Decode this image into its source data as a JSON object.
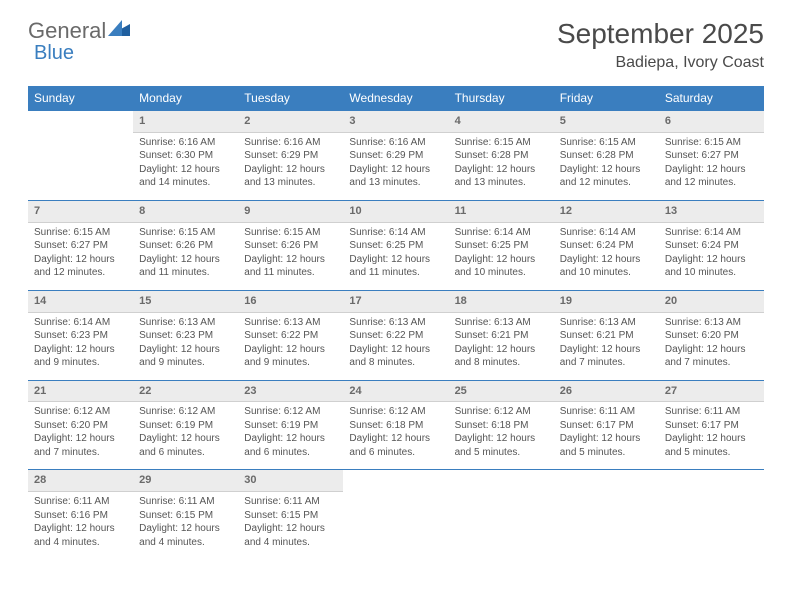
{
  "brand": {
    "word1": "General",
    "word2": "Blue"
  },
  "title": "September 2025",
  "location": "Badiepa, Ivory Coast",
  "colors": {
    "header_bg": "#3a7ebf",
    "daynum_bg": "#ececec",
    "text": "#4a4a4a"
  },
  "days_of_week": [
    "Sunday",
    "Monday",
    "Tuesday",
    "Wednesday",
    "Thursday",
    "Friday",
    "Saturday"
  ],
  "weeks": [
    [
      null,
      {
        "n": "1",
        "sr": "Sunrise: 6:16 AM",
        "ss": "Sunset: 6:30 PM",
        "dl": "Daylight: 12 hours and 14 minutes."
      },
      {
        "n": "2",
        "sr": "Sunrise: 6:16 AM",
        "ss": "Sunset: 6:29 PM",
        "dl": "Daylight: 12 hours and 13 minutes."
      },
      {
        "n": "3",
        "sr": "Sunrise: 6:16 AM",
        "ss": "Sunset: 6:29 PM",
        "dl": "Daylight: 12 hours and 13 minutes."
      },
      {
        "n": "4",
        "sr": "Sunrise: 6:15 AM",
        "ss": "Sunset: 6:28 PM",
        "dl": "Daylight: 12 hours and 13 minutes."
      },
      {
        "n": "5",
        "sr": "Sunrise: 6:15 AM",
        "ss": "Sunset: 6:28 PM",
        "dl": "Daylight: 12 hours and 12 minutes."
      },
      {
        "n": "6",
        "sr": "Sunrise: 6:15 AM",
        "ss": "Sunset: 6:27 PM",
        "dl": "Daylight: 12 hours and 12 minutes."
      }
    ],
    [
      {
        "n": "7",
        "sr": "Sunrise: 6:15 AM",
        "ss": "Sunset: 6:27 PM",
        "dl": "Daylight: 12 hours and 12 minutes."
      },
      {
        "n": "8",
        "sr": "Sunrise: 6:15 AM",
        "ss": "Sunset: 6:26 PM",
        "dl": "Daylight: 12 hours and 11 minutes."
      },
      {
        "n": "9",
        "sr": "Sunrise: 6:15 AM",
        "ss": "Sunset: 6:26 PM",
        "dl": "Daylight: 12 hours and 11 minutes."
      },
      {
        "n": "10",
        "sr": "Sunrise: 6:14 AM",
        "ss": "Sunset: 6:25 PM",
        "dl": "Daylight: 12 hours and 11 minutes."
      },
      {
        "n": "11",
        "sr": "Sunrise: 6:14 AM",
        "ss": "Sunset: 6:25 PM",
        "dl": "Daylight: 12 hours and 10 minutes."
      },
      {
        "n": "12",
        "sr": "Sunrise: 6:14 AM",
        "ss": "Sunset: 6:24 PM",
        "dl": "Daylight: 12 hours and 10 minutes."
      },
      {
        "n": "13",
        "sr": "Sunrise: 6:14 AM",
        "ss": "Sunset: 6:24 PM",
        "dl": "Daylight: 12 hours and 10 minutes."
      }
    ],
    [
      {
        "n": "14",
        "sr": "Sunrise: 6:14 AM",
        "ss": "Sunset: 6:23 PM",
        "dl": "Daylight: 12 hours and 9 minutes."
      },
      {
        "n": "15",
        "sr": "Sunrise: 6:13 AM",
        "ss": "Sunset: 6:23 PM",
        "dl": "Daylight: 12 hours and 9 minutes."
      },
      {
        "n": "16",
        "sr": "Sunrise: 6:13 AM",
        "ss": "Sunset: 6:22 PM",
        "dl": "Daylight: 12 hours and 9 minutes."
      },
      {
        "n": "17",
        "sr": "Sunrise: 6:13 AM",
        "ss": "Sunset: 6:22 PM",
        "dl": "Daylight: 12 hours and 8 minutes."
      },
      {
        "n": "18",
        "sr": "Sunrise: 6:13 AM",
        "ss": "Sunset: 6:21 PM",
        "dl": "Daylight: 12 hours and 8 minutes."
      },
      {
        "n": "19",
        "sr": "Sunrise: 6:13 AM",
        "ss": "Sunset: 6:21 PM",
        "dl": "Daylight: 12 hours and 7 minutes."
      },
      {
        "n": "20",
        "sr": "Sunrise: 6:13 AM",
        "ss": "Sunset: 6:20 PM",
        "dl": "Daylight: 12 hours and 7 minutes."
      }
    ],
    [
      {
        "n": "21",
        "sr": "Sunrise: 6:12 AM",
        "ss": "Sunset: 6:20 PM",
        "dl": "Daylight: 12 hours and 7 minutes."
      },
      {
        "n": "22",
        "sr": "Sunrise: 6:12 AM",
        "ss": "Sunset: 6:19 PM",
        "dl": "Daylight: 12 hours and 6 minutes."
      },
      {
        "n": "23",
        "sr": "Sunrise: 6:12 AM",
        "ss": "Sunset: 6:19 PM",
        "dl": "Daylight: 12 hours and 6 minutes."
      },
      {
        "n": "24",
        "sr": "Sunrise: 6:12 AM",
        "ss": "Sunset: 6:18 PM",
        "dl": "Daylight: 12 hours and 6 minutes."
      },
      {
        "n": "25",
        "sr": "Sunrise: 6:12 AM",
        "ss": "Sunset: 6:18 PM",
        "dl": "Daylight: 12 hours and 5 minutes."
      },
      {
        "n": "26",
        "sr": "Sunrise: 6:11 AM",
        "ss": "Sunset: 6:17 PM",
        "dl": "Daylight: 12 hours and 5 minutes."
      },
      {
        "n": "27",
        "sr": "Sunrise: 6:11 AM",
        "ss": "Sunset: 6:17 PM",
        "dl": "Daylight: 12 hours and 5 minutes."
      }
    ],
    [
      {
        "n": "28",
        "sr": "Sunrise: 6:11 AM",
        "ss": "Sunset: 6:16 PM",
        "dl": "Daylight: 12 hours and 4 minutes."
      },
      {
        "n": "29",
        "sr": "Sunrise: 6:11 AM",
        "ss": "Sunset: 6:15 PM",
        "dl": "Daylight: 12 hours and 4 minutes."
      },
      {
        "n": "30",
        "sr": "Sunrise: 6:11 AM",
        "ss": "Sunset: 6:15 PM",
        "dl": "Daylight: 12 hours and 4 minutes."
      },
      null,
      null,
      null,
      null
    ]
  ]
}
